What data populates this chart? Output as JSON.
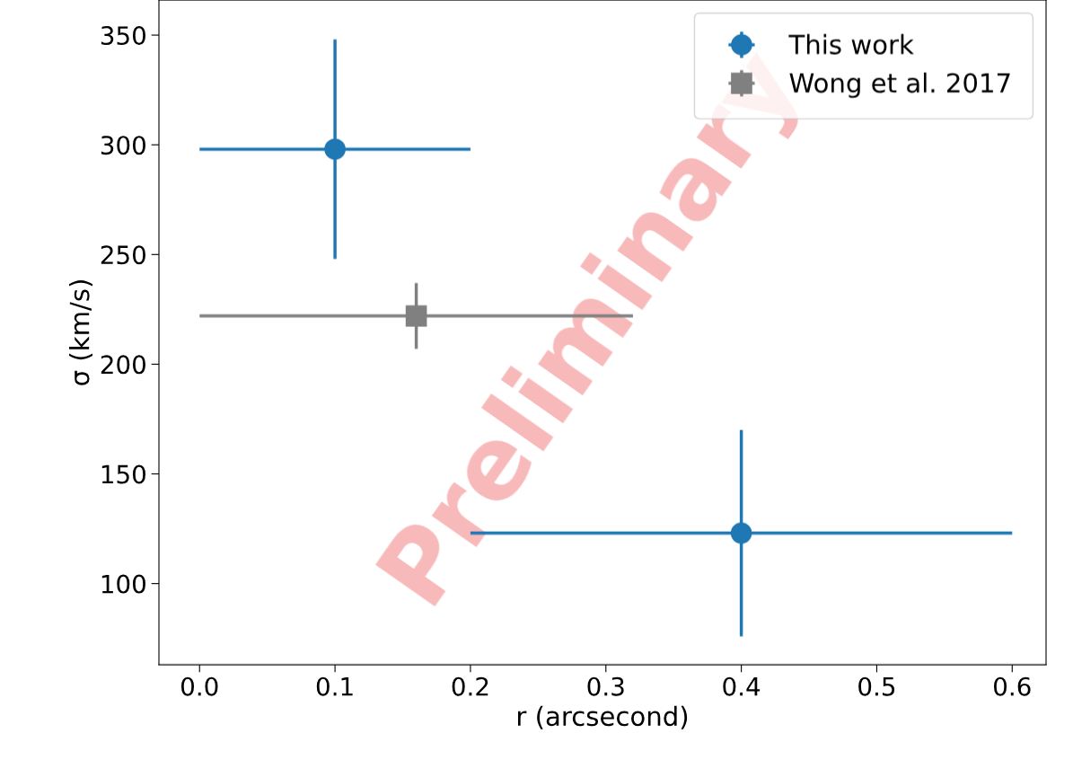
{
  "chart_data": {
    "type": "scatter",
    "xlabel": "r (arcsecond)",
    "ylabel": "σ (km/s)",
    "xlim": [
      -0.03,
      0.625
    ],
    "ylim": [
      63,
      366
    ],
    "xticks": [
      {
        "value": 0,
        "label": "0.0"
      },
      0.1,
      0.2,
      0.3,
      0.4,
      0.5,
      0.6
    ],
    "yticks": [
      100,
      150,
      200,
      250,
      300,
      350
    ],
    "series": [
      {
        "name": "This work",
        "color": "#1f77b4",
        "marker": "circle",
        "x": [
          0.1,
          0.4
        ],
        "values": [
          298,
          123
        ],
        "errors": [
          50,
          47
        ],
        "xerrors": [
          0.1,
          0.2
        ]
      },
      {
        "name": "Wong et al. 2017",
        "color": "#808080",
        "marker": "square",
        "x": [
          0.16
        ],
        "values": [
          222
        ],
        "errors": [
          15
        ],
        "xerrors": [
          0.16
        ]
      }
    ],
    "annotations": [
      "Preliminary"
    ],
    "legend": "top right",
    "grid": false
  }
}
